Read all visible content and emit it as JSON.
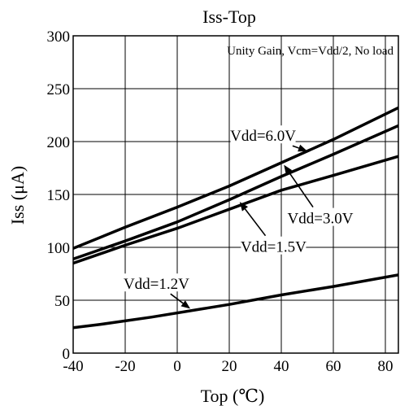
{
  "chart_data": {
    "type": "line",
    "title": "Iss-Top",
    "subtitle": "Unity Gain, Vcm=Vdd/2, No load",
    "xlabel": "Top (℃)",
    "ylabel": "Iss (μA)",
    "xlim": [
      -40,
      85
    ],
    "ylim": [
      0,
      300
    ],
    "xticks": [
      -40,
      -20,
      0,
      20,
      40,
      60,
      80
    ],
    "yticks": [
      0,
      50,
      100,
      150,
      200,
      250,
      300
    ],
    "xtick_labels": [
      "-40",
      "-20",
      "0",
      "20",
      "40",
      "60",
      "80"
    ],
    "ytick_labels": [
      "0",
      "50",
      "100",
      "150",
      "200",
      "250",
      "300"
    ],
    "grid": true,
    "series": [
      {
        "name": "Vdd=6.0V",
        "x": [
          -40,
          -20,
          0,
          20,
          40,
          60,
          85
        ],
        "y": [
          99,
          119,
          138,
          158,
          180,
          202,
          232
        ],
        "label_at": [
          33,
          206
        ],
        "arrow_to": [
          50,
          191
        ]
      },
      {
        "name": "Vdd=3.0V",
        "x": [
          -40,
          -20,
          0,
          20,
          40,
          60,
          85
        ],
        "y": [
          89,
          106,
          124,
          145,
          167,
          188,
          215
        ],
        "label_at": [
          55,
          128
        ],
        "arrow_to": [
          41,
          178
        ]
      },
      {
        "name": "Vdd=1.5V",
        "x": [
          -40,
          -20,
          0,
          20,
          40,
          60,
          85
        ],
        "y": [
          85,
          102,
          118,
          136,
          154,
          168,
          186
        ],
        "label_at": [
          37,
          101
        ],
        "arrow_to": [
          24,
          143
        ]
      },
      {
        "name": "Vdd=1.2V",
        "x": [
          -40,
          -30,
          -10,
          10,
          20,
          40,
          60,
          85
        ],
        "y": [
          24,
          27,
          34,
          42,
          46,
          55,
          63,
          74
        ],
        "label_at": [
          -8,
          66
        ],
        "arrow_to": [
          5,
          42
        ]
      }
    ]
  }
}
